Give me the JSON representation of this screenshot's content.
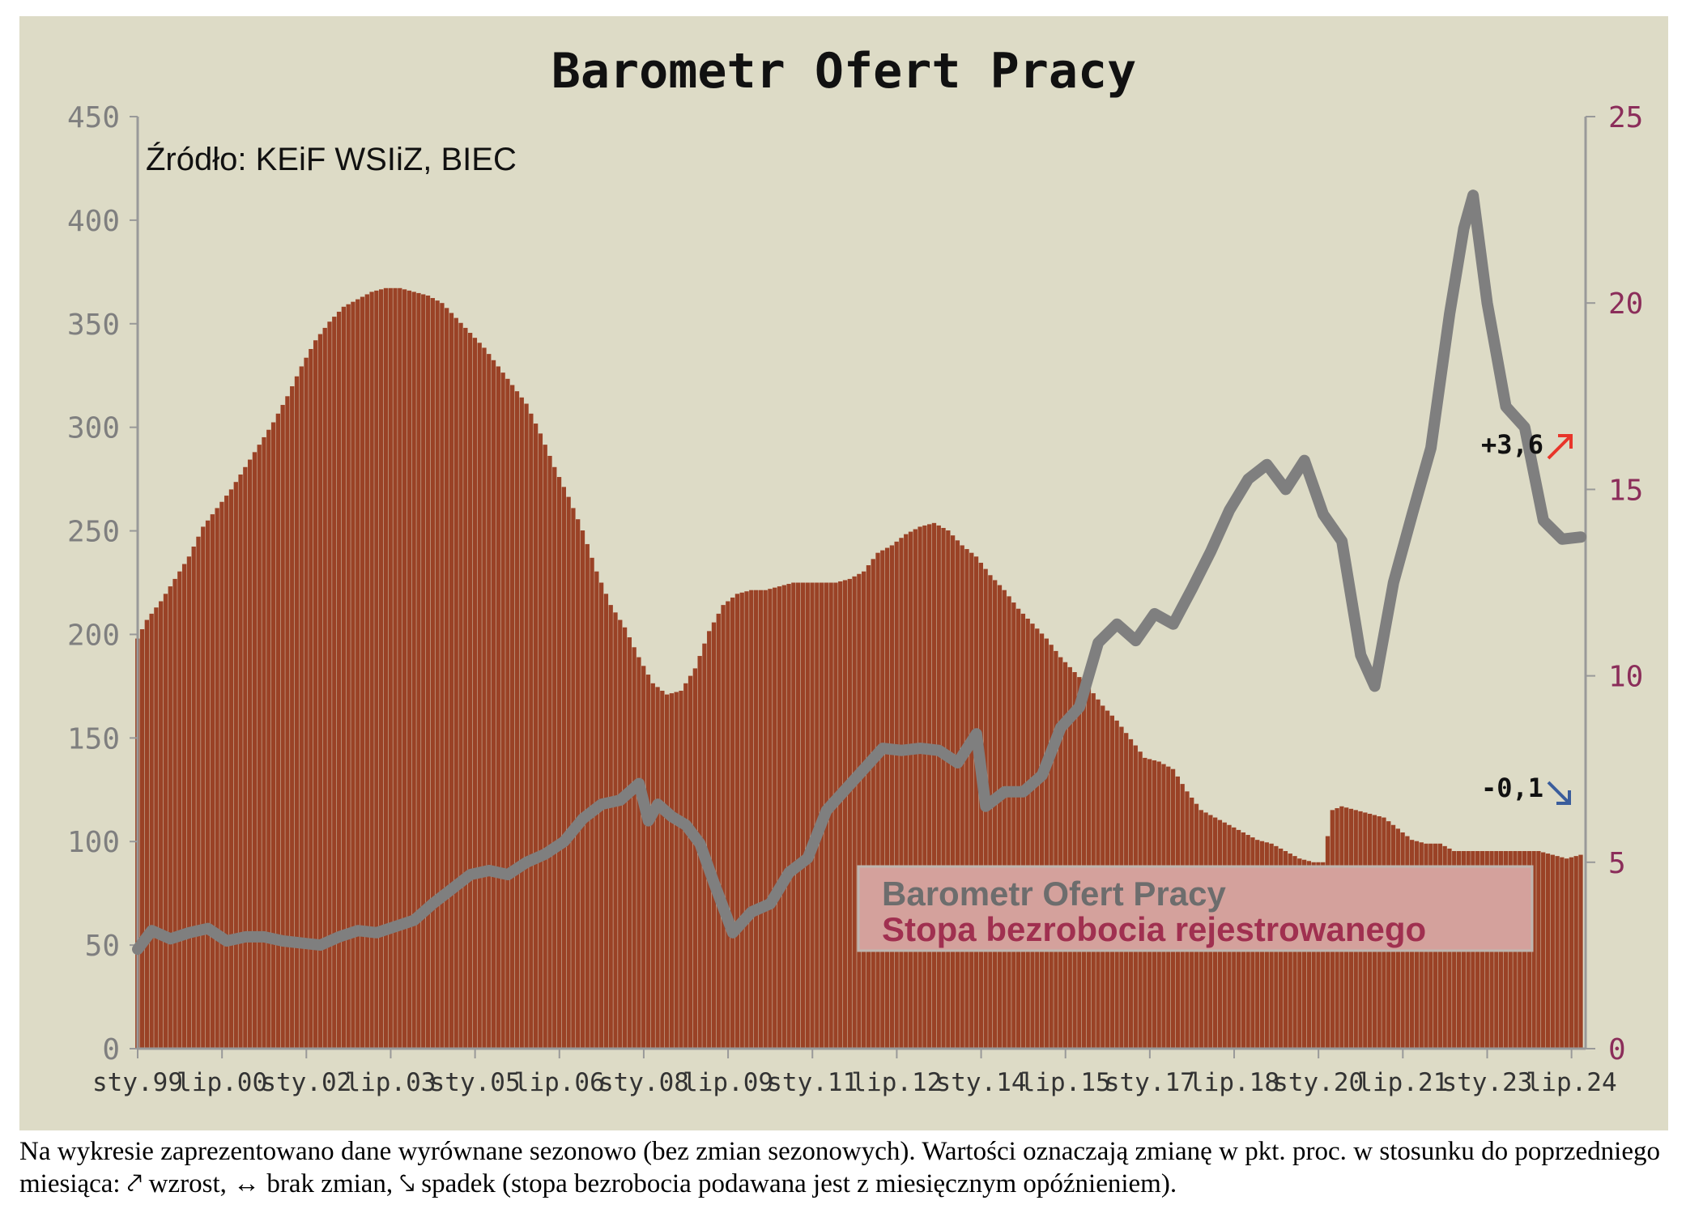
{
  "caption": "Na wykresie zaprezentowano dane wyrównane sezonowo (bez zmian sezonowych). Wartości oznaczają zmianę w pkt. proc. w stosunku do poprzedniego miesiąca: ⤤ wzrost, ↔ brak zmian, ⤥ spadek (stopa bezrobocia podawana jest z miesięcznym opóźnieniem).",
  "colors": {
    "background": "#dddbc6",
    "bars": "#9a4226",
    "line": "#7f7f7f",
    "right_axis": "#8b2d5a",
    "arrow_up": "#e8352a",
    "arrow_down": "#3a5d9c",
    "legend_box": "#d4a19c"
  },
  "chart_data": {
    "type": "bar+line",
    "title": "Barometr Ofert Pracy",
    "source": "Źródło: KEiF WSIiZ, BIEC",
    "x_tick_labels": [
      "sty.99",
      "lip.00",
      "sty.02",
      "lip.03",
      "sty.05",
      "lip.06",
      "sty.08",
      "lip.09",
      "sty.11",
      "lip.12",
      "sty.14",
      "lip.15",
      "sty.17",
      "lip.18",
      "sty.20",
      "lip.21",
      "sty.23",
      "lip.24"
    ],
    "y_left": {
      "ticks": [
        0,
        50,
        100,
        150,
        200,
        250,
        300,
        350,
        400,
        450
      ],
      "range": [
        0,
        450
      ]
    },
    "y_right": {
      "ticks": [
        0,
        5,
        10,
        15,
        20,
        25
      ],
      "range": [
        0,
        25
      ]
    },
    "x_range": [
      "1999-01",
      "2024-10"
    ],
    "legend": [
      {
        "name": "Barometr Ofert Pracy",
        "kind": "line"
      },
      {
        "name": "Stopa bezrobocia rejestrowanego",
        "kind": "bars"
      }
    ],
    "annotations": [
      {
        "text": "+3,6",
        "arrow": "up"
      },
      {
        "text": "-0,1",
        "arrow": "down"
      }
    ],
    "unemployment_rate_bars": {
      "axis": "right",
      "points": [
        [
          "1999-01",
          11.0
        ],
        [
          "1999-03",
          11.5
        ],
        [
          "1999-06",
          12.0
        ],
        [
          "1999-09",
          12.6
        ],
        [
          "1999-12",
          13.2
        ],
        [
          "2000-03",
          14.0
        ],
        [
          "2000-06",
          14.5
        ],
        [
          "2000-09",
          15.0
        ],
        [
          "2000-12",
          15.6
        ],
        [
          "2001-03",
          16.2
        ],
        [
          "2001-06",
          16.8
        ],
        [
          "2001-09",
          17.5
        ],
        [
          "2001-12",
          18.3
        ],
        [
          "2002-03",
          19.0
        ],
        [
          "2002-06",
          19.5
        ],
        [
          "2002-09",
          19.9
        ],
        [
          "2002-12",
          20.1
        ],
        [
          "2003-03",
          20.3
        ],
        [
          "2003-06",
          20.4
        ],
        [
          "2003-09",
          20.4
        ],
        [
          "2003-12",
          20.3
        ],
        [
          "2004-03",
          20.2
        ],
        [
          "2004-06",
          20.0
        ],
        [
          "2004-09",
          19.6
        ],
        [
          "2004-12",
          19.2
        ],
        [
          "2005-03",
          18.8
        ],
        [
          "2005-06",
          18.3
        ],
        [
          "2005-09",
          17.8
        ],
        [
          "2005-12",
          17.3
        ],
        [
          "2006-03",
          16.5
        ],
        [
          "2006-06",
          15.6
        ],
        [
          "2006-09",
          14.8
        ],
        [
          "2006-12",
          13.9
        ],
        [
          "2007-03",
          12.8
        ],
        [
          "2007-06",
          11.9
        ],
        [
          "2007-09",
          11.3
        ],
        [
          "2007-12",
          10.5
        ],
        [
          "2008-03",
          9.8
        ],
        [
          "2008-06",
          9.5
        ],
        [
          "2008-09",
          9.6
        ],
        [
          "2008-12",
          10.2
        ],
        [
          "2009-03",
          11.2
        ],
        [
          "2009-06",
          11.9
        ],
        [
          "2009-09",
          12.2
        ],
        [
          "2009-12",
          12.3
        ],
        [
          "2010-03",
          12.3
        ],
        [
          "2010-06",
          12.4
        ],
        [
          "2010-09",
          12.5
        ],
        [
          "2010-12",
          12.5
        ],
        [
          "2011-03",
          12.5
        ],
        [
          "2011-06",
          12.5
        ],
        [
          "2011-09",
          12.6
        ],
        [
          "2011-12",
          12.8
        ],
        [
          "2012-03",
          13.3
        ],
        [
          "2012-06",
          13.5
        ],
        [
          "2012-09",
          13.8
        ],
        [
          "2012-12",
          14.0
        ],
        [
          "2013-03",
          14.1
        ],
        [
          "2013-06",
          13.9
        ],
        [
          "2013-09",
          13.5
        ],
        [
          "2013-12",
          13.2
        ],
        [
          "2014-03",
          12.7
        ],
        [
          "2014-06",
          12.3
        ],
        [
          "2014-09",
          11.8
        ],
        [
          "2014-12",
          11.4
        ],
        [
          "2015-03",
          11.0
        ],
        [
          "2015-06",
          10.5
        ],
        [
          "2015-09",
          10.1
        ],
        [
          "2015-12",
          9.7
        ],
        [
          "2016-03",
          9.2
        ],
        [
          "2016-06",
          8.8
        ],
        [
          "2016-09",
          8.3
        ],
        [
          "2016-12",
          7.8
        ],
        [
          "2017-03",
          7.7
        ],
        [
          "2017-06",
          7.5
        ],
        [
          "2017-09",
          6.9
        ],
        [
          "2017-12",
          6.4
        ],
        [
          "2018-03",
          6.2
        ],
        [
          "2018-06",
          6.0
        ],
        [
          "2018-09",
          5.8
        ],
        [
          "2018-12",
          5.6
        ],
        [
          "2019-03",
          5.5
        ],
        [
          "2019-06",
          5.3
        ],
        [
          "2019-09",
          5.1
        ],
        [
          "2019-12",
          5.0
        ],
        [
          "2020-02",
          5.0
        ],
        [
          "2020-04",
          6.4
        ],
        [
          "2020-06",
          6.5
        ],
        [
          "2020-09",
          6.4
        ],
        [
          "2020-12",
          6.3
        ],
        [
          "2021-03",
          6.2
        ],
        [
          "2021-06",
          5.9
        ],
        [
          "2021-09",
          5.6
        ],
        [
          "2021-12",
          5.5
        ],
        [
          "2022-03",
          5.5
        ],
        [
          "2022-06",
          5.3
        ],
        [
          "2022-09",
          5.3
        ],
        [
          "2022-12",
          5.3
        ],
        [
          "2023-03",
          5.3
        ],
        [
          "2023-06",
          5.3
        ],
        [
          "2023-09",
          5.3
        ],
        [
          "2023-12",
          5.3
        ],
        [
          "2024-03",
          5.2
        ],
        [
          "2024-06",
          5.1
        ],
        [
          "2024-09",
          5.2
        ]
      ]
    },
    "job_offers_barometer_line": {
      "axis": "left",
      "points": [
        [
          "1999-01",
          48
        ],
        [
          "1999-04",
          57
        ],
        [
          "1999-08",
          53
        ],
        [
          "1999-12",
          56
        ],
        [
          "2000-04",
          58
        ],
        [
          "2000-08",
          52
        ],
        [
          "2000-12",
          54
        ],
        [
          "2001-04",
          54
        ],
        [
          "2001-08",
          52
        ],
        [
          "2001-12",
          51
        ],
        [
          "2002-04",
          50
        ],
        [
          "2002-08",
          54
        ],
        [
          "2002-12",
          57
        ],
        [
          "2003-04",
          56
        ],
        [
          "2003-08",
          59
        ],
        [
          "2003-12",
          62
        ],
        [
          "2004-04",
          70
        ],
        [
          "2004-08",
          77
        ],
        [
          "2004-12",
          84
        ],
        [
          "2005-04",
          86
        ],
        [
          "2005-08",
          84
        ],
        [
          "2005-12",
          90
        ],
        [
          "2006-04",
          94
        ],
        [
          "2006-08",
          100
        ],
        [
          "2006-12",
          111
        ],
        [
          "2007-04",
          118
        ],
        [
          "2007-08",
          120
        ],
        [
          "2007-12",
          128
        ],
        [
          "2008-02",
          110
        ],
        [
          "2008-04",
          118
        ],
        [
          "2008-07",
          112
        ],
        [
          "2008-10",
          108
        ],
        [
          "2009-01",
          99
        ],
        [
          "2009-04",
          80
        ],
        [
          "2009-08",
          56
        ],
        [
          "2009-12",
          66
        ],
        [
          "2010-04",
          70
        ],
        [
          "2010-08",
          85
        ],
        [
          "2010-12",
          92
        ],
        [
          "2011-04",
          115
        ],
        [
          "2011-08",
          125
        ],
        [
          "2011-12",
          135
        ],
        [
          "2012-04",
          145
        ],
        [
          "2012-08",
          144
        ],
        [
          "2012-12",
          145
        ],
        [
          "2013-04",
          144
        ],
        [
          "2013-08",
          138
        ],
        [
          "2013-12",
          152
        ],
        [
          "2014-02",
          117
        ],
        [
          "2014-06",
          124
        ],
        [
          "2014-10",
          124
        ],
        [
          "2015-02",
          132
        ],
        [
          "2015-06",
          155
        ],
        [
          "2015-10",
          165
        ],
        [
          "2016-02",
          196
        ],
        [
          "2016-06",
          205
        ],
        [
          "2016-10",
          197
        ],
        [
          "2017-02",
          210
        ],
        [
          "2017-06",
          205
        ],
        [
          "2017-10",
          222
        ],
        [
          "2018-02",
          240
        ],
        [
          "2018-06",
          260
        ],
        [
          "2018-10",
          275
        ],
        [
          "2019-02",
          282
        ],
        [
          "2019-06",
          270
        ],
        [
          "2019-10",
          284
        ],
        [
          "2020-02",
          258
        ],
        [
          "2020-06",
          245
        ],
        [
          "2020-10",
          190
        ],
        [
          "2021-01",
          175
        ],
        [
          "2021-05",
          225
        ],
        [
          "2021-09",
          258
        ],
        [
          "2022-01",
          290
        ],
        [
          "2022-05",
          355
        ],
        [
          "2022-08",
          396
        ],
        [
          "2022-10",
          412
        ],
        [
          "2023-01",
          360
        ],
        [
          "2023-05",
          310
        ],
        [
          "2023-09",
          300
        ],
        [
          "2024-01",
          255
        ],
        [
          "2024-05",
          246
        ],
        [
          "2024-09",
          247
        ]
      ]
    }
  }
}
